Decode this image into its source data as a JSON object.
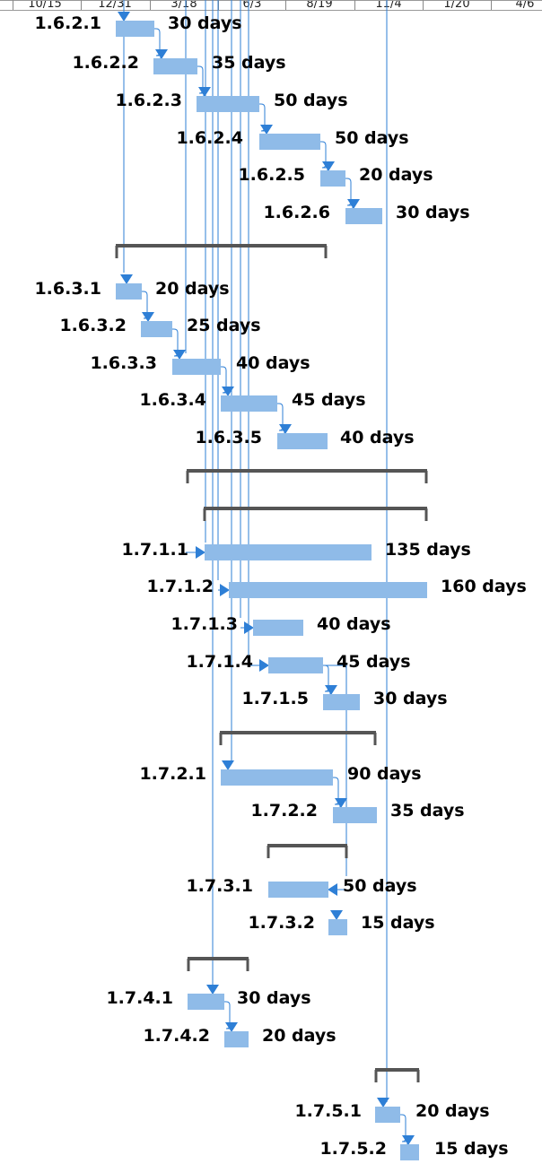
{
  "chart_data": {
    "type": "gantt",
    "timescale": {
      "ticks": [
        "10/15",
        "12/31",
        "3/18",
        "6/3",
        "8/19",
        "11/4",
        "1/20",
        "4/6"
      ]
    },
    "tasks": [
      {
        "id": "1.6.2.1",
        "duration": "30 days"
      },
      {
        "id": "1.6.2.2",
        "duration": "35 days"
      },
      {
        "id": "1.6.2.3",
        "duration": "50 days"
      },
      {
        "id": "1.6.2.4",
        "duration": "50 days"
      },
      {
        "id": "1.6.2.5",
        "duration": "20 days"
      },
      {
        "id": "1.6.2.6",
        "duration": "30 days"
      },
      {
        "id": "1.6.3.1",
        "duration": "20 days"
      },
      {
        "id": "1.6.3.2",
        "duration": "25 days"
      },
      {
        "id": "1.6.3.3",
        "duration": "40 days"
      },
      {
        "id": "1.6.3.4",
        "duration": "45 days"
      },
      {
        "id": "1.6.3.5",
        "duration": "40 days"
      },
      {
        "id": "1.7.1.1",
        "duration": "135 days"
      },
      {
        "id": "1.7.1.2",
        "duration": "160 days"
      },
      {
        "id": "1.7.1.3",
        "duration": "40 days"
      },
      {
        "id": "1.7.1.4",
        "duration": "45 days"
      },
      {
        "id": "1.7.1.5",
        "duration": "30 days"
      },
      {
        "id": "1.7.2.1",
        "duration": "90 days"
      },
      {
        "id": "1.7.2.2",
        "duration": "35 days"
      },
      {
        "id": "1.7.3.1",
        "duration": "50 days"
      },
      {
        "id": "1.7.3.2",
        "duration": "15 days"
      },
      {
        "id": "1.7.4.1",
        "duration": "30 days"
      },
      {
        "id": "1.7.4.2",
        "duration": "20 days"
      },
      {
        "id": "1.7.5.1",
        "duration": "20 days"
      },
      {
        "id": "1.7.5.2",
        "duration": "15 days"
      }
    ],
    "colors": {
      "task_bar": "#8fbbe8",
      "link": "#2e7fd6",
      "summary_bar": "#555555"
    }
  }
}
